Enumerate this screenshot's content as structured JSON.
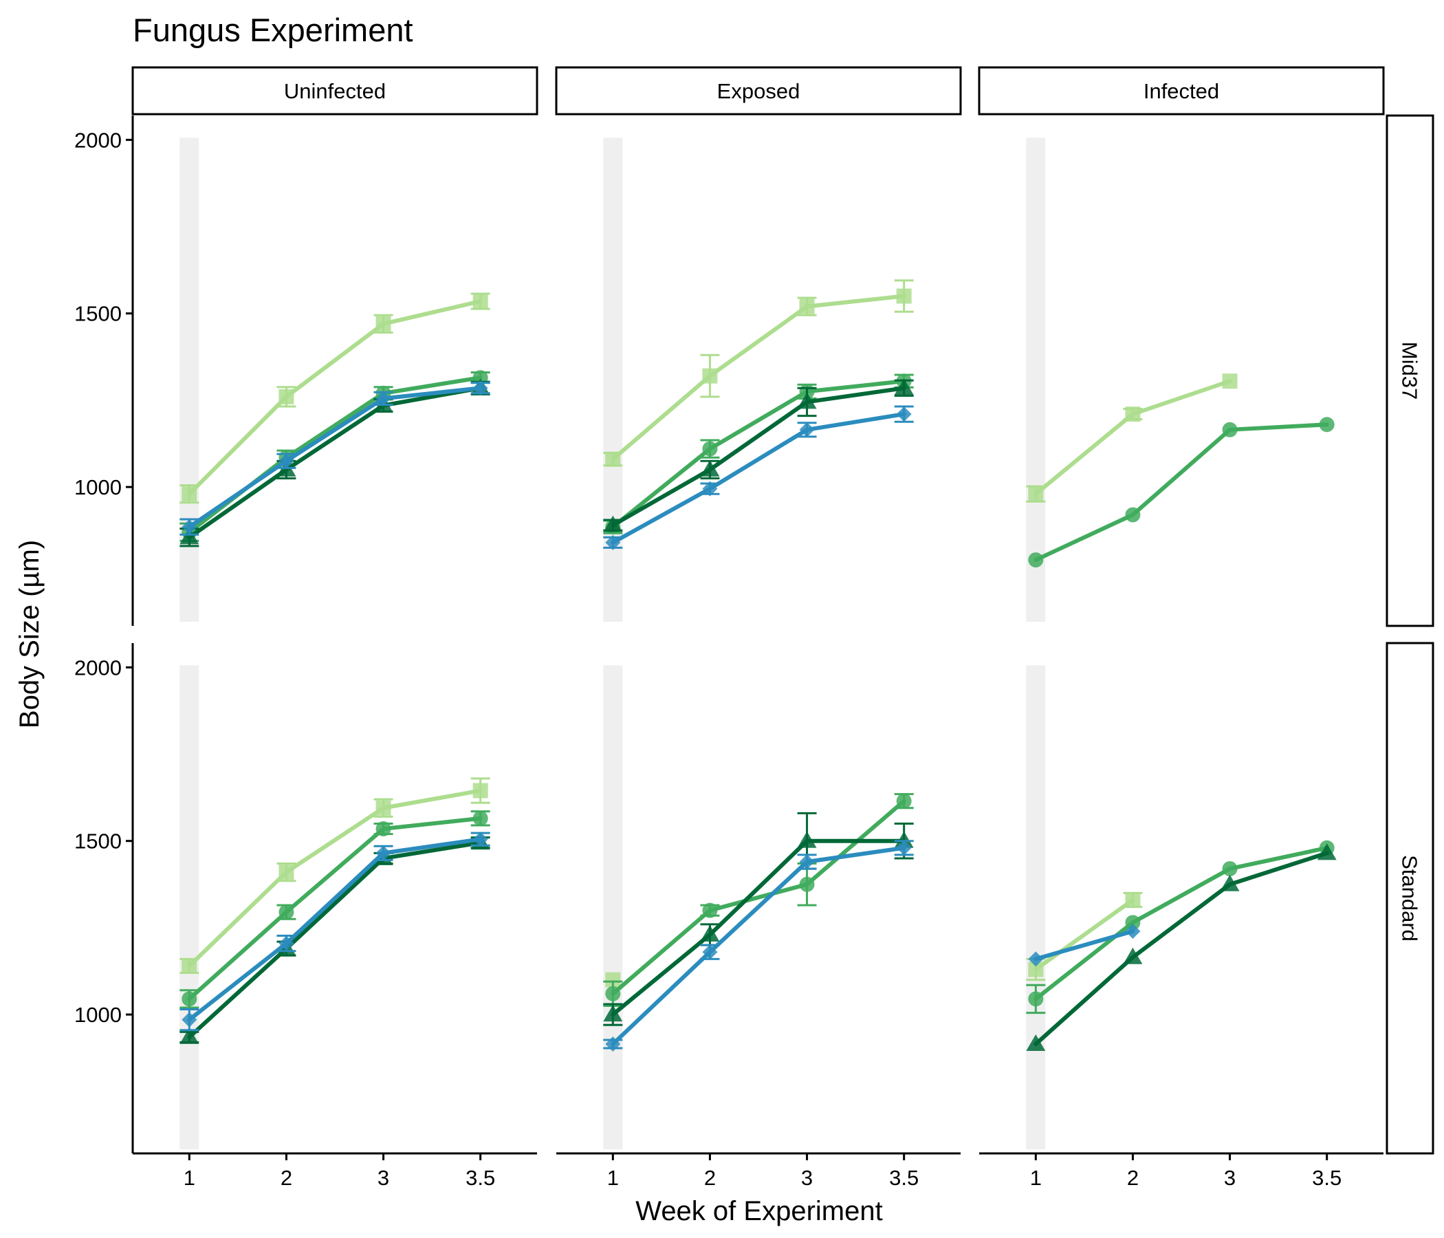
{
  "chart_data": {
    "type": "line",
    "title": "Fungus Experiment",
    "xlabel": "Week of Experiment",
    "ylabel": "Body Size (µm)",
    "x_categories": [
      "1",
      "2",
      "3",
      "3.5"
    ],
    "y_ticks": [
      1000,
      1500,
      2000
    ],
    "ylim": [
      600,
      2070
    ],
    "grid": false,
    "legend": "none",
    "highlight_band_category": "1",
    "column_facets": [
      "Uninfected",
      "Exposed",
      "Infected"
    ],
    "row_facets": [
      "Mid37",
      "Standard"
    ],
    "series_styles": [
      {
        "id": "s1",
        "color": "#addd8e",
        "shape": "square"
      },
      {
        "id": "s2",
        "color": "#41ab5d",
        "shape": "circle"
      },
      {
        "id": "s3",
        "color": "#006837",
        "shape": "triangle"
      },
      {
        "id": "s4",
        "color": "#2b8cbe",
        "shape": "diamond"
      }
    ],
    "panels": [
      {
        "row": "Mid37",
        "column": "Uninfected",
        "series": [
          {
            "id": "s1",
            "values": [
              980,
              1260,
              1470,
              1535
            ],
            "errors": [
              25,
              28,
              25,
              22
            ]
          },
          {
            "id": "s2",
            "values": [
              870,
              1085,
              1270,
              1315
            ],
            "errors": [
              25,
              20,
              18,
              15
            ]
          },
          {
            "id": "s3",
            "values": [
              855,
              1050,
              1235,
              1285
            ],
            "errors": [
              25,
              25,
              18,
              18
            ]
          },
          {
            "id": "s4",
            "values": [
              885,
              1075,
              1255,
              1285
            ],
            "errors": [
              22,
              20,
              18,
              15
            ]
          }
        ]
      },
      {
        "row": "Mid37",
        "column": "Exposed",
        "series": [
          {
            "id": "s1",
            "values": [
              1080,
              1320,
              1520,
              1550
            ],
            "errors": [
              18,
              60,
              25,
              45
            ]
          },
          {
            "id": "s2",
            "values": [
              885,
              1110,
              1275,
              1305
            ],
            "errors": [
              18,
              25,
              20,
              18
            ]
          },
          {
            "id": "s3",
            "values": [
              890,
              1050,
              1245,
              1285
            ],
            "errors": [
              15,
              25,
              40,
              22
            ]
          },
          {
            "id": "s4",
            "values": [
              840,
              995,
              1165,
              1210
            ],
            "errors": [
              15,
              15,
              20,
              22
            ]
          }
        ]
      },
      {
        "row": "Mid37",
        "column": "Infected",
        "series": [
          {
            "id": "s1",
            "values": [
              980,
              1210,
              1305,
              null
            ],
            "errors": [
              22,
              15,
              0,
              null
            ]
          },
          {
            "id": "s2",
            "values": [
              790,
              920,
              1165,
              1180
            ],
            "errors": [
              0,
              0,
              0,
              0
            ]
          }
        ]
      },
      {
        "row": "Standard",
        "column": "Uninfected",
        "series": [
          {
            "id": "s1",
            "values": [
              1140,
              1410,
              1595,
              1645
            ],
            "errors": [
              20,
              25,
              25,
              35
            ]
          },
          {
            "id": "s2",
            "values": [
              1045,
              1295,
              1535,
              1565
            ],
            "errors": [
              25,
              20,
              15,
              20
            ]
          },
          {
            "id": "s3",
            "values": [
              935,
              1190,
              1450,
              1495
            ],
            "errors": [
              15,
              20,
              15,
              15
            ]
          },
          {
            "id": "s4",
            "values": [
              985,
              1205,
              1465,
              1505
            ],
            "errors": [
              30,
              22,
              20,
              18
            ]
          }
        ]
      },
      {
        "row": "Standard",
        "column": "Exposed",
        "series": [
          {
            "id": "s1",
            "values": [
              1100,
              null,
              null,
              null
            ],
            "errors": [
              0,
              null,
              null,
              null
            ]
          },
          {
            "id": "s2",
            "values": [
              1060,
              1300,
              1375,
              1615
            ],
            "errors": [
              35,
              15,
              60,
              20
            ]
          },
          {
            "id": "s3",
            "values": [
              1000,
              1230,
              1500,
              1500
            ],
            "errors": [
              30,
              30,
              80,
              50
            ]
          },
          {
            "id": "s4",
            "values": [
              915,
              1180,
              1440,
              1480
            ],
            "errors": [
              12,
              20,
              20,
              20
            ]
          }
        ]
      },
      {
        "row": "Standard",
        "column": "Infected",
        "series": [
          {
            "id": "s1",
            "values": [
              1130,
              1330,
              null,
              null
            ],
            "errors": [
              30,
              20,
              null,
              null
            ]
          },
          {
            "id": "s2",
            "values": [
              1045,
              1265,
              1420,
              1480
            ],
            "errors": [
              40,
              0,
              0,
              0
            ]
          },
          {
            "id": "s3",
            "values": [
              915,
              1165,
              1375,
              1465
            ],
            "errors": [
              0,
              0,
              0,
              0
            ]
          },
          {
            "id": "s4",
            "values": [
              1160,
              1240,
              null,
              null
            ],
            "errors": [
              0,
              0,
              null,
              null
            ]
          }
        ]
      }
    ]
  }
}
